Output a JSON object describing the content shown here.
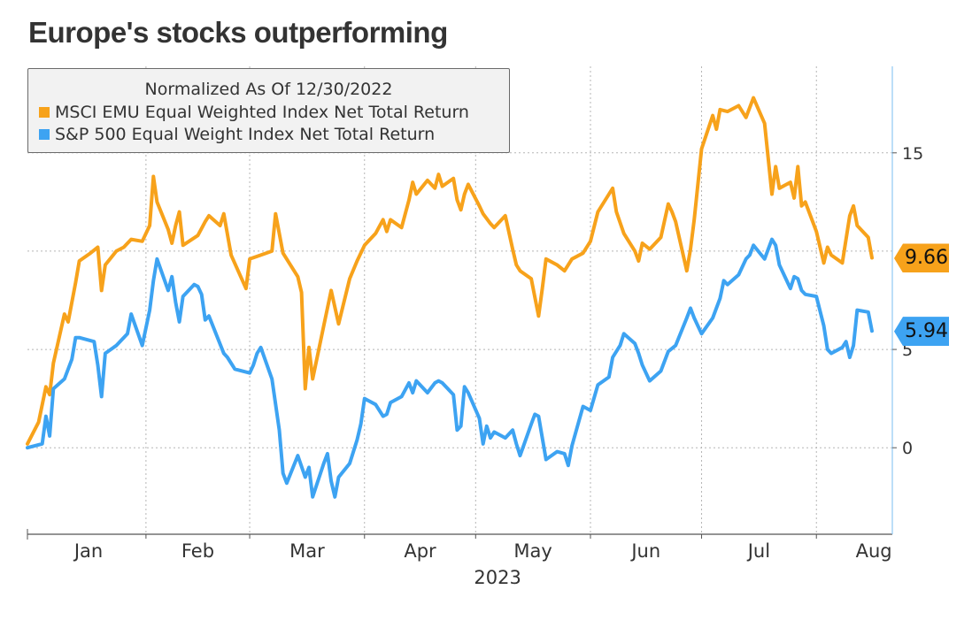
{
  "title": "Europe's stocks outperforming",
  "legend": {
    "title": "Normalized As Of 12/30/2022",
    "items": [
      {
        "label": "MSCI EMU Equal Weighted Index Net Total Return",
        "color": "#f7a21b"
      },
      {
        "label": "S&P 500 Equal Weight Index Net Total Return",
        "color": "#3da3f2"
      }
    ]
  },
  "tags": [
    {
      "value": "9.66",
      "color": "#f7a21b",
      "y": 9.66
    },
    {
      "value": "5.94",
      "color": "#3da3f2",
      "y": 5.94
    }
  ],
  "chart_data": {
    "type": "line",
    "xlabel": "2023",
    "ylabel": "",
    "x_ticks": [
      "Jan",
      "Feb",
      "Mar",
      "Apr",
      "May",
      "Jun",
      "Jul",
      "Aug"
    ],
    "y_ticks": [
      0,
      5,
      15
    ],
    "ylim": [
      -4.4,
      19.4
    ],
    "grid": true,
    "legend_position": "top-left",
    "series": [
      {
        "name": "MSCI EMU Equal Weighted Index Net Total Return",
        "color": "#f7a21b",
        "points": [
          [
            "2022-12-30",
            0.2
          ],
          [
            "2023-01-02",
            1.3
          ],
          [
            "2023-01-04",
            3.1
          ],
          [
            "2023-01-05",
            2.7
          ],
          [
            "2023-01-06",
            4.3
          ],
          [
            "2023-01-09",
            6.8
          ],
          [
            "2023-01-10",
            6.4
          ],
          [
            "2023-01-12",
            8.4
          ],
          [
            "2023-01-13",
            9.5
          ],
          [
            "2023-01-16",
            9.9
          ],
          [
            "2023-01-18",
            10.2
          ],
          [
            "2023-01-19",
            8.0
          ],
          [
            "2023-01-20",
            9.3
          ],
          [
            "2023-01-23",
            10.0
          ],
          [
            "2023-01-25",
            10.2
          ],
          [
            "2023-01-27",
            10.6
          ],
          [
            "2023-01-30",
            10.5
          ],
          [
            "2023-02-01",
            11.3
          ],
          [
            "2023-02-02",
            13.8
          ],
          [
            "2023-02-03",
            12.5
          ],
          [
            "2023-02-06",
            11.1
          ],
          [
            "2023-02-07",
            10.4
          ],
          [
            "2023-02-08",
            11.3
          ],
          [
            "2023-02-09",
            12.0
          ],
          [
            "2023-02-10",
            10.3
          ],
          [
            "2023-02-14",
            10.8
          ],
          [
            "2023-02-16",
            11.5
          ],
          [
            "2023-02-17",
            11.8
          ],
          [
            "2023-02-20",
            11.3
          ],
          [
            "2023-02-21",
            11.9
          ],
          [
            "2023-02-23",
            9.8
          ],
          [
            "2023-02-27",
            8.1
          ],
          [
            "2023-02-28",
            9.6
          ],
          [
            "2023-03-03",
            9.8
          ],
          [
            "2023-03-06",
            10.0
          ],
          [
            "2023-03-07",
            11.9
          ],
          [
            "2023-03-09",
            9.9
          ],
          [
            "2023-03-13",
            8.7
          ],
          [
            "2023-03-14",
            7.9
          ],
          [
            "2023-03-15",
            3.0
          ],
          [
            "2023-03-16",
            5.1
          ],
          [
            "2023-03-17",
            3.5
          ],
          [
            "2023-03-20",
            6.2
          ],
          [
            "2023-03-22",
            8.0
          ],
          [
            "2023-03-24",
            6.3
          ],
          [
            "2023-03-27",
            8.6
          ],
          [
            "2023-03-29",
            9.5
          ],
          [
            "2023-03-31",
            10.3
          ],
          [
            "2023-04-03",
            10.9
          ],
          [
            "2023-04-05",
            11.6
          ],
          [
            "2023-04-06",
            11.0
          ],
          [
            "2023-04-07",
            11.6
          ],
          [
            "2023-04-10",
            11.2
          ],
          [
            "2023-04-12",
            12.6
          ],
          [
            "2023-04-13",
            13.5
          ],
          [
            "2023-04-14",
            12.9
          ],
          [
            "2023-04-17",
            13.6
          ],
          [
            "2023-04-19",
            13.2
          ],
          [
            "2023-04-20",
            13.9
          ],
          [
            "2023-04-21",
            13.3
          ],
          [
            "2023-04-24",
            13.7
          ],
          [
            "2023-04-25",
            12.6
          ],
          [
            "2023-04-26",
            12.1
          ],
          [
            "2023-04-27",
            12.9
          ],
          [
            "2023-04-28",
            13.4
          ],
          [
            "2023-05-01",
            12.3
          ],
          [
            "2023-05-02",
            11.9
          ],
          [
            "2023-05-04",
            11.4
          ],
          [
            "2023-05-05",
            11.2
          ],
          [
            "2023-05-08",
            11.8
          ],
          [
            "2023-05-10",
            10.1
          ],
          [
            "2023-05-11",
            9.3
          ],
          [
            "2023-05-12",
            9.0
          ],
          [
            "2023-05-15",
            8.6
          ],
          [
            "2023-05-17",
            6.7
          ],
          [
            "2023-05-18",
            8.1
          ],
          [
            "2023-05-19",
            9.6
          ],
          [
            "2023-05-22",
            9.3
          ],
          [
            "2023-05-24",
            9.0
          ],
          [
            "2023-05-26",
            9.6
          ],
          [
            "2023-05-29",
            9.9
          ],
          [
            "2023-05-31",
            10.5
          ],
          [
            "2023-06-02",
            12.0
          ],
          [
            "2023-06-05",
            12.9
          ],
          [
            "2023-06-06",
            13.2
          ],
          [
            "2023-06-07",
            12.0
          ],
          [
            "2023-06-09",
            10.9
          ],
          [
            "2023-06-12",
            10.0
          ],
          [
            "2023-06-13",
            9.5
          ],
          [
            "2023-06-14",
            10.4
          ],
          [
            "2023-06-16",
            10.1
          ],
          [
            "2023-06-19",
            10.7
          ],
          [
            "2023-06-21",
            12.4
          ],
          [
            "2023-06-22",
            12.0
          ],
          [
            "2023-06-23",
            11.5
          ],
          [
            "2023-06-26",
            9.0
          ],
          [
            "2023-06-27",
            10.1
          ],
          [
            "2023-06-28",
            11.6
          ],
          [
            "2023-06-30",
            15.2
          ],
          [
            "2023-07-03",
            16.9
          ],
          [
            "2023-07-04",
            16.2
          ],
          [
            "2023-07-05",
            17.2
          ],
          [
            "2023-07-07",
            17.1
          ],
          [
            "2023-07-10",
            17.4
          ],
          [
            "2023-07-12",
            16.8
          ],
          [
            "2023-07-13",
            17.3
          ],
          [
            "2023-07-14",
            17.8
          ],
          [
            "2023-07-17",
            16.5
          ],
          [
            "2023-07-19",
            12.9
          ],
          [
            "2023-07-20",
            14.3
          ],
          [
            "2023-07-21",
            13.2
          ],
          [
            "2023-07-24",
            13.5
          ],
          [
            "2023-07-25",
            12.7
          ],
          [
            "2023-07-26",
            14.3
          ],
          [
            "2023-07-27",
            12.3
          ],
          [
            "2023-07-28",
            12.5
          ],
          [
            "2023-07-31",
            11.0
          ],
          [
            "2023-08-02",
            9.4
          ],
          [
            "2023-08-03",
            10.2
          ],
          [
            "2023-08-04",
            9.8
          ],
          [
            "2023-08-07",
            9.4
          ],
          [
            "2023-08-08",
            10.6
          ],
          [
            "2023-08-09",
            11.8
          ],
          [
            "2023-08-10",
            12.3
          ],
          [
            "2023-08-11",
            11.3
          ],
          [
            "2023-08-14",
            10.7
          ],
          [
            "2023-08-15",
            9.66
          ]
        ]
      },
      {
        "name": "S&P 500 Equal Weight Index Net Total Return",
        "color": "#3da3f2",
        "points": [
          [
            "2022-12-30",
            0.0
          ],
          [
            "2023-01-03",
            0.2
          ],
          [
            "2023-01-04",
            1.6
          ],
          [
            "2023-01-05",
            0.6
          ],
          [
            "2023-01-06",
            3.0
          ],
          [
            "2023-01-09",
            3.5
          ],
          [
            "2023-01-11",
            4.5
          ],
          [
            "2023-01-12",
            5.6
          ],
          [
            "2023-01-13",
            5.6
          ],
          [
            "2023-01-17",
            5.4
          ],
          [
            "2023-01-18",
            4.2
          ],
          [
            "2023-01-19",
            2.6
          ],
          [
            "2023-01-20",
            4.8
          ],
          [
            "2023-01-23",
            5.2
          ],
          [
            "2023-01-25",
            5.6
          ],
          [
            "2023-01-26",
            5.8
          ],
          [
            "2023-01-27",
            6.8
          ],
          [
            "2023-01-30",
            5.2
          ],
          [
            "2023-02-01",
            7.0
          ],
          [
            "2023-02-02",
            8.5
          ],
          [
            "2023-02-03",
            9.6
          ],
          [
            "2023-02-06",
            8.0
          ],
          [
            "2023-02-07",
            8.7
          ],
          [
            "2023-02-08",
            7.4
          ],
          [
            "2023-02-09",
            6.4
          ],
          [
            "2023-02-10",
            7.7
          ],
          [
            "2023-02-13",
            8.3
          ],
          [
            "2023-02-14",
            8.2
          ],
          [
            "2023-02-15",
            7.8
          ],
          [
            "2023-02-16",
            6.5
          ],
          [
            "2023-02-17",
            6.7
          ],
          [
            "2023-02-21",
            4.8
          ],
          [
            "2023-02-22",
            4.6
          ],
          [
            "2023-02-24",
            4.0
          ],
          [
            "2023-02-28",
            3.8
          ],
          [
            "2023-03-01",
            4.2
          ],
          [
            "2023-03-02",
            4.8
          ],
          [
            "2023-03-03",
            5.1
          ],
          [
            "2023-03-06",
            3.5
          ],
          [
            "2023-03-08",
            0.9
          ],
          [
            "2023-03-09",
            -1.3
          ],
          [
            "2023-03-10",
            -1.8
          ],
          [
            "2023-03-13",
            -0.4
          ],
          [
            "2023-03-15",
            -1.5
          ],
          [
            "2023-03-16",
            -1.0
          ],
          [
            "2023-03-17",
            -2.5
          ],
          [
            "2023-03-20",
            -0.8
          ],
          [
            "2023-03-21",
            -0.3
          ],
          [
            "2023-03-22",
            -1.7
          ],
          [
            "2023-03-23",
            -2.5
          ],
          [
            "2023-03-24",
            -1.5
          ],
          [
            "2023-03-27",
            -0.8
          ],
          [
            "2023-03-29",
            0.4
          ],
          [
            "2023-03-30",
            1.2
          ],
          [
            "2023-03-31",
            2.5
          ],
          [
            "2023-04-03",
            2.2
          ],
          [
            "2023-04-05",
            1.6
          ],
          [
            "2023-04-06",
            1.7
          ],
          [
            "2023-04-07",
            2.3
          ],
          [
            "2023-04-10",
            2.6
          ],
          [
            "2023-04-12",
            3.3
          ],
          [
            "2023-04-13",
            2.8
          ],
          [
            "2023-04-14",
            3.4
          ],
          [
            "2023-04-17",
            2.8
          ],
          [
            "2023-04-19",
            3.3
          ],
          [
            "2023-04-20",
            3.4
          ],
          [
            "2023-04-21",
            3.3
          ],
          [
            "2023-04-24",
            2.7
          ],
          [
            "2023-04-25",
            0.9
          ],
          [
            "2023-04-26",
            1.1
          ],
          [
            "2023-04-27",
            3.1
          ],
          [
            "2023-04-28",
            2.8
          ],
          [
            "2023-05-01",
            1.5
          ],
          [
            "2023-05-02",
            0.2
          ],
          [
            "2023-05-03",
            1.1
          ],
          [
            "2023-05-04",
            0.5
          ],
          [
            "2023-05-05",
            0.8
          ],
          [
            "2023-05-08",
            0.5
          ],
          [
            "2023-05-10",
            0.9
          ],
          [
            "2023-05-11",
            0.2
          ],
          [
            "2023-05-12",
            -0.4
          ],
          [
            "2023-05-15",
            1.2
          ],
          [
            "2023-05-16",
            1.7
          ],
          [
            "2023-05-17",
            1.6
          ],
          [
            "2023-05-18",
            0.5
          ],
          [
            "2023-05-19",
            -0.6
          ],
          [
            "2023-05-22",
            -0.2
          ],
          [
            "2023-05-24",
            -0.3
          ],
          [
            "2023-05-25",
            -0.9
          ],
          [
            "2023-05-26",
            0.1
          ],
          [
            "2023-05-29",
            2.1
          ],
          [
            "2023-05-31",
            1.9
          ],
          [
            "2023-06-02",
            3.2
          ],
          [
            "2023-06-05",
            3.6
          ],
          [
            "2023-06-06",
            4.6
          ],
          [
            "2023-06-08",
            5.2
          ],
          [
            "2023-06-09",
            5.8
          ],
          [
            "2023-06-12",
            5.3
          ],
          [
            "2023-06-13",
            4.8
          ],
          [
            "2023-06-14",
            4.2
          ],
          [
            "2023-06-16",
            3.4
          ],
          [
            "2023-06-19",
            3.9
          ],
          [
            "2023-06-21",
            4.9
          ],
          [
            "2023-06-23",
            5.2
          ],
          [
            "2023-06-26",
            6.6
          ],
          [
            "2023-06-27",
            7.1
          ],
          [
            "2023-06-28",
            6.6
          ],
          [
            "2023-06-30",
            5.8
          ],
          [
            "2023-07-03",
            6.6
          ],
          [
            "2023-07-05",
            7.6
          ],
          [
            "2023-07-06",
            8.5
          ],
          [
            "2023-07-07",
            8.3
          ],
          [
            "2023-07-10",
            8.8
          ],
          [
            "2023-07-12",
            9.6
          ],
          [
            "2023-07-13",
            9.8
          ],
          [
            "2023-07-14",
            10.3
          ],
          [
            "2023-07-17",
            9.6
          ],
          [
            "2023-07-19",
            10.6
          ],
          [
            "2023-07-20",
            10.3
          ],
          [
            "2023-07-21",
            9.3
          ],
          [
            "2023-07-24",
            8.1
          ],
          [
            "2023-07-25",
            8.7
          ],
          [
            "2023-07-26",
            8.6
          ],
          [
            "2023-07-27",
            8.0
          ],
          [
            "2023-07-28",
            7.8
          ],
          [
            "2023-07-31",
            7.7
          ],
          [
            "2023-08-02",
            6.2
          ],
          [
            "2023-08-03",
            5.0
          ],
          [
            "2023-08-04",
            4.8
          ],
          [
            "2023-08-07",
            5.1
          ],
          [
            "2023-08-08",
            5.4
          ],
          [
            "2023-08-09",
            4.6
          ],
          [
            "2023-08-10",
            5.2
          ],
          [
            "2023-08-11",
            7.0
          ],
          [
            "2023-08-14",
            6.9
          ],
          [
            "2023-08-15",
            5.94
          ]
        ]
      }
    ]
  }
}
